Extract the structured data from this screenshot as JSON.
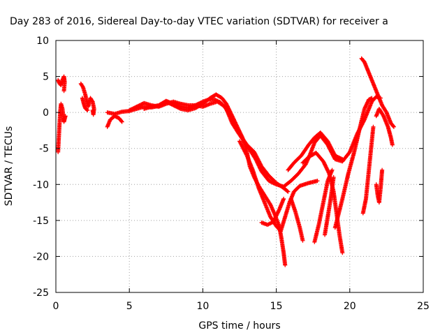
{
  "chart_data": {
    "type": "scatter",
    "title": "Day 283 of 2016, Sidereal Day-to-day VTEC variation (SDTVAR) for receiver a",
    "xlabel": "GPS time / hours",
    "ylabel": "SDTVAR / TECUs",
    "xlim": [
      0,
      25
    ],
    "ylim": [
      -25,
      10
    ],
    "xticks": [
      0,
      5,
      10,
      15,
      20,
      25
    ],
    "yticks": [
      -25,
      -20,
      -15,
      -10,
      -5,
      0,
      5,
      10
    ],
    "grid": true,
    "marker": "+",
    "color": "#ff0000",
    "traces": [
      [
        [
          0.15,
          4.5
        ],
        [
          0.25,
          4.0
        ],
        [
          0.35,
          3.8
        ],
        [
          0.45,
          4.5
        ],
        [
          0.55,
          5.0
        ],
        [
          0.6,
          4.2
        ],
        [
          0.55,
          3.0
        ]
      ],
      [
        [
          0.15,
          -5.5
        ],
        [
          0.2,
          -3.5
        ],
        [
          0.25,
          -1.5
        ],
        [
          0.3,
          0.2
        ],
        [
          0.35,
          1.2
        ],
        [
          0.45,
          0.5
        ],
        [
          0.5,
          -0.8
        ],
        [
          0.55,
          -1.3
        ],
        [
          0.65,
          -0.5
        ]
      ],
      [
        [
          1.7,
          4.0
        ],
        [
          1.85,
          3.5
        ],
        [
          2.0,
          2.5
        ],
        [
          2.1,
          1.5
        ],
        [
          2.2,
          0.8
        ],
        [
          2.35,
          2.0
        ],
        [
          2.5,
          1.5
        ],
        [
          2.6,
          0.5
        ],
        [
          2.55,
          -0.3
        ],
        [
          2.5,
          0.3
        ]
      ],
      [
        [
          1.8,
          2.0
        ],
        [
          1.9,
          1.2
        ],
        [
          2.0,
          0.6
        ],
        [
          2.15,
          0.3
        ]
      ],
      [
        [
          3.5,
          -2.0
        ],
        [
          3.7,
          -1.0
        ],
        [
          4.0,
          -0.5
        ],
        [
          4.3,
          -0.8
        ],
        [
          4.5,
          -1.3
        ]
      ],
      [
        [
          3.5,
          0.0
        ],
        [
          4.0,
          -0.2
        ],
        [
          4.5,
          0.1
        ],
        [
          5.0,
          0.2
        ],
        [
          5.5,
          0.5
        ],
        [
          6.0,
          0.8
        ],
        [
          6.5,
          0.7
        ],
        [
          7.0,
          0.9
        ],
        [
          7.5,
          1.5
        ],
        [
          8.0,
          1.0
        ],
        [
          8.5,
          0.5
        ],
        [
          9.0,
          0.3
        ],
        [
          9.5,
          0.6
        ],
        [
          10.0,
          1.2
        ],
        [
          10.5,
          2.0
        ],
        [
          10.9,
          2.5
        ],
        [
          11.3,
          2.0
        ],
        [
          11.6,
          1.2
        ],
        [
          12.0,
          -0.5
        ],
        [
          12.3,
          -1.8
        ],
        [
          12.7,
          -3.5
        ],
        [
          13.0,
          -5.5
        ],
        [
          13.2,
          -7.5
        ],
        [
          13.5,
          -9.0
        ],
        [
          13.8,
          -10.2
        ],
        [
          14.2,
          -11.5
        ],
        [
          14.6,
          -12.8
        ],
        [
          14.9,
          -14.2
        ],
        [
          15.2,
          -15.8
        ],
        [
          15.35,
          -17.5
        ],
        [
          15.5,
          -19.5
        ],
        [
          15.6,
          -21.2
        ]
      ],
      [
        [
          5.0,
          0.3
        ],
        [
          5.5,
          0.8
        ],
        [
          6.0,
          1.3
        ],
        [
          6.5,
          1.0
        ],
        [
          7.0,
          0.8
        ],
        [
          7.5,
          1.2
        ],
        [
          8.0,
          1.5
        ],
        [
          8.5,
          1.2
        ],
        [
          9.0,
          1.0
        ],
        [
          9.5,
          1.0
        ],
        [
          10.0,
          0.8
        ],
        [
          10.5,
          1.2
        ],
        [
          11.0,
          1.5
        ],
        [
          11.5,
          0.8
        ],
        [
          12.0,
          -1.0
        ],
        [
          12.5,
          -3.0
        ],
        [
          13.0,
          -4.5
        ],
        [
          13.5,
          -5.5
        ],
        [
          14.0,
          -7.5
        ],
        [
          14.5,
          -8.8
        ],
        [
          15.0,
          -9.8
        ],
        [
          15.5,
          -10.5
        ],
        [
          15.8,
          -11.0
        ]
      ],
      [
        [
          6.0,
          0.5
        ],
        [
          6.5,
          0.8
        ],
        [
          7.0,
          1.0
        ],
        [
          7.5,
          1.6
        ],
        [
          8.0,
          1.2
        ],
        [
          8.5,
          0.8
        ],
        [
          9.0,
          0.6
        ],
        [
          9.5,
          1.0
        ],
        [
          10.0,
          1.5
        ],
        [
          10.4,
          1.8
        ],
        [
          10.8,
          1.8
        ],
        [
          11.2,
          1.4
        ],
        [
          11.6,
          0.5
        ],
        [
          12.0,
          -1.5
        ],
        [
          12.4,
          -2.8
        ],
        [
          12.8,
          -4.0
        ],
        [
          13.2,
          -5.2
        ],
        [
          13.6,
          -6.5
        ],
        [
          14.0,
          -8.2
        ],
        [
          14.5,
          -9.5
        ],
        [
          15.0,
          -10.0
        ],
        [
          15.5,
          -10.3
        ],
        [
          16.0,
          -9.5
        ],
        [
          16.5,
          -8.5
        ],
        [
          17.0,
          -7.2
        ],
        [
          17.3,
          -5.8
        ],
        [
          17.6,
          -4.2
        ],
        [
          18.0,
          -3.2
        ],
        [
          18.5,
          -4.5
        ],
        [
          19.0,
          -6.5
        ],
        [
          19.5,
          -6.8
        ],
        [
          20.0,
          -5.5
        ],
        [
          20.5,
          -3.0
        ],
        [
          21.0,
          -1.0
        ],
        [
          21.5,
          1.5
        ],
        [
          21.8,
          2.2
        ],
        [
          22.1,
          2.0
        ]
      ],
      [
        [
          12.5,
          -4.0
        ],
        [
          13.0,
          -6.0
        ],
        [
          13.4,
          -8.0
        ],
        [
          13.8,
          -10.5
        ],
        [
          14.2,
          -12.5
        ],
        [
          14.6,
          -14.5
        ],
        [
          15.0,
          -15.8
        ],
        [
          15.3,
          -16.5
        ],
        [
          15.6,
          -14.5
        ],
        [
          15.9,
          -12.5
        ],
        [
          16.2,
          -11.0
        ],
        [
          16.6,
          -10.2
        ],
        [
          17.2,
          -9.8
        ],
        [
          17.8,
          -9.5
        ]
      ],
      [
        [
          14.0,
          -15.3
        ],
        [
          14.4,
          -15.6
        ],
        [
          14.8,
          -15.2
        ],
        [
          15.2,
          -13.5
        ],
        [
          15.5,
          -12.0
        ]
      ],
      [
        [
          15.8,
          -8.0
        ],
        [
          16.2,
          -7.0
        ],
        [
          16.7,
          -6.0
        ],
        [
          17.2,
          -4.5
        ],
        [
          17.6,
          -3.5
        ],
        [
          18.0,
          -2.8
        ],
        [
          18.5,
          -4.0
        ],
        [
          19.0,
          -6.0
        ],
        [
          19.5,
          -6.5
        ]
      ],
      [
        [
          16.0,
          -12.0
        ],
        [
          16.3,
          -13.8
        ],
        [
          16.6,
          -16.0
        ],
        [
          16.8,
          -17.8
        ]
      ],
      [
        [
          16.8,
          -7.0
        ],
        [
          17.2,
          -6.2
        ],
        [
          17.7,
          -5.6
        ],
        [
          18.2,
          -6.8
        ],
        [
          18.6,
          -8.5
        ],
        [
          18.9,
          -11.0
        ],
        [
          19.1,
          -14.0
        ],
        [
          19.3,
          -17.0
        ],
        [
          19.5,
          -19.5
        ]
      ],
      [
        [
          17.6,
          -18.0
        ],
        [
          17.9,
          -15.5
        ],
        [
          18.2,
          -12.5
        ],
        [
          18.5,
          -9.5
        ],
        [
          18.8,
          -8.0
        ]
      ],
      [
        [
          18.3,
          -17.0
        ],
        [
          18.5,
          -14.5
        ],
        [
          18.7,
          -12.0
        ],
        [
          18.9,
          -9.0
        ]
      ],
      [
        [
          19.0,
          -16.0
        ],
        [
          19.5,
          -12.0
        ],
        [
          19.9,
          -8.5
        ],
        [
          20.3,
          -5.5
        ],
        [
          20.7,
          -2.0
        ],
        [
          21.0,
          0.5
        ],
        [
          21.3,
          1.8
        ],
        [
          21.5,
          2.0
        ]
      ],
      [
        [
          20.8,
          7.5
        ],
        [
          21.0,
          7.0
        ],
        [
          21.3,
          5.5
        ],
        [
          21.6,
          4.0
        ],
        [
          21.9,
          2.5
        ],
        [
          22.2,
          1.0
        ],
        [
          22.5,
          0.0
        ],
        [
          22.8,
          -1.5
        ],
        [
          23.0,
          -2.0
        ]
      ],
      [
        [
          21.8,
          -0.5
        ],
        [
          22.0,
          0.5
        ],
        [
          22.3,
          -0.5
        ],
        [
          22.6,
          -2.0
        ],
        [
          22.8,
          -3.5
        ],
        [
          22.9,
          -4.5
        ]
      ],
      [
        [
          20.9,
          -14.0
        ],
        [
          21.1,
          -12.0
        ],
        [
          21.3,
          -8.0
        ],
        [
          21.5,
          -4.0
        ],
        [
          21.6,
          -2.0
        ]
      ],
      [
        [
          21.8,
          -10.0
        ],
        [
          21.9,
          -11.5
        ],
        [
          22.0,
          -12.5
        ],
        [
          22.1,
          -10.5
        ],
        [
          22.2,
          -8.0
        ]
      ]
    ]
  }
}
